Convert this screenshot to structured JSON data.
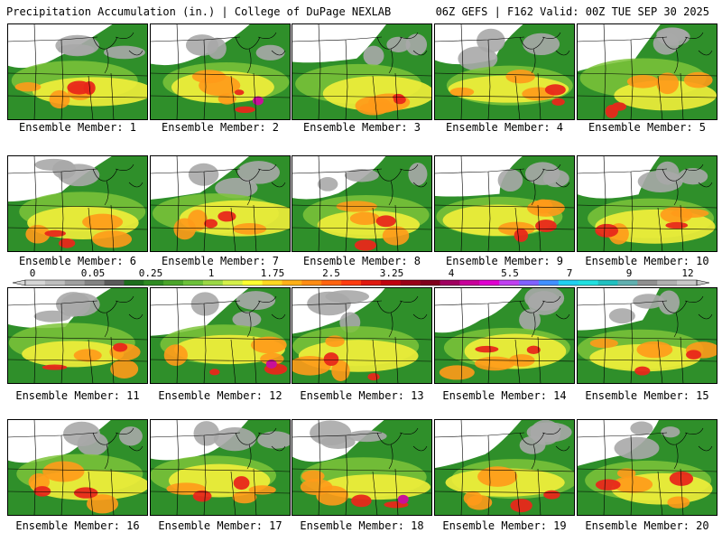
{
  "header": {
    "left_title": "Precipitation Accumulation (in.) | College of DuPage NEXLAB",
    "right_title": "06Z GEFS | F162 Valid: 00Z TUE SEP 30 2025"
  },
  "colorbar": {
    "labels": [
      "0",
      "0.05",
      "0.25",
      "1",
      "1.75",
      "2.5",
      "3.25",
      "4",
      "5.5",
      "7",
      "9",
      "12"
    ],
    "colors": [
      "#d6d6d6",
      "#bebebe",
      "#a0a0a0",
      "#828282",
      "#5a5a5a",
      "#1c6e1c",
      "#2e8b22",
      "#4aa52a",
      "#6cc13a",
      "#9bd846",
      "#d4f04a",
      "#ffff30",
      "#ffd820",
      "#ffb018",
      "#ff8c14",
      "#ff6410",
      "#ff3c10",
      "#e01810",
      "#c00010",
      "#9a0018",
      "#80001c",
      "#a00060",
      "#c8009a",
      "#e000d0",
      "#c040f0",
      "#8060ff",
      "#4090ff",
      "#20d0f0",
      "#20e0e0",
      "#20c0c0",
      "#60b0b0",
      "#909090",
      "#b0b0b0",
      "#c8c8c8"
    ]
  },
  "members": [
    {
      "label": "Ensemble Member: 1"
    },
    {
      "label": "Ensemble Member: 2"
    },
    {
      "label": "Ensemble Member: 3"
    },
    {
      "label": "Ensemble Member: 4"
    },
    {
      "label": "Ensemble Member: 5"
    },
    {
      "label": "Ensemble Member: 6"
    },
    {
      "label": "Ensemble Member: 7"
    },
    {
      "label": "Ensemble Member: 8"
    },
    {
      "label": "Ensemble Member: 9"
    },
    {
      "label": "Ensemble Member: 10"
    },
    {
      "label": "Ensemble Member: 11"
    },
    {
      "label": "Ensemble Member: 12"
    },
    {
      "label": "Ensemble Member: 13"
    },
    {
      "label": "Ensemble Member: 14"
    },
    {
      "label": "Ensemble Member: 15"
    },
    {
      "label": "Ensemble Member: 16"
    },
    {
      "label": "Ensemble Member: 17"
    },
    {
      "label": "Ensemble Member: 18"
    },
    {
      "label": "Ensemble Member: 19"
    },
    {
      "label": "Ensemble Member: 20"
    }
  ],
  "palette": {
    "snow": "#ffffff",
    "grey": "#a8a8a8",
    "green": "#2f8f2a",
    "lightgreen": "#7cc43a",
    "yellow": "#f2ee3a",
    "orange": "#ff9a1a",
    "red": "#e8281a",
    "magenta": "#c8109a",
    "border": "#000000"
  }
}
